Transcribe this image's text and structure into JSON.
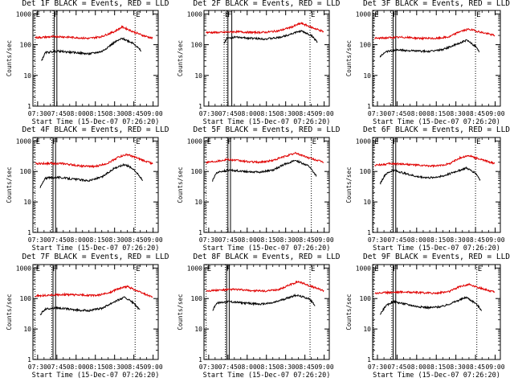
{
  "colors": {
    "events": "#000000",
    "lld": "#e00000",
    "axis": "#000000",
    "background": "#ffffff"
  },
  "chart_data": [
    {
      "type": "line",
      "title": "Det 1F BLACK = Events, RED = LLD",
      "xlabel": "Start Time (15-Dec-07 07:26:20)",
      "ylabel": "Counts/sec",
      "x_ticks": [
        "07:30",
        "07:45",
        "08:00",
        "08:15",
        "08:30",
        "08:45",
        "09:00"
      ],
      "y_ticks": [
        "1",
        "10",
        "100",
        "1000"
      ],
      "x_range": [
        "07:26:20",
        "09:04"
      ],
      "y_range": [
        1,
        1300
      ],
      "y_scale": "log",
      "markers": [
        {
          "label": "E",
          "time": "07:28"
        },
        {
          "label": "F",
          "time": "07:42"
        },
        {
          "label": "E",
          "time": "08:46"
        }
      ],
      "bracket": [
        "07:43",
        "07:45"
      ],
      "series": [
        {
          "color": "red",
          "start": "07:28",
          "end": "09:00",
          "times": [
            "07:28",
            "07:35",
            "07:45",
            "08:00",
            "08:10",
            "08:20",
            "08:30",
            "08:36",
            "08:45",
            "08:52",
            "09:00"
          ],
          "values": [
            170,
            175,
            185,
            170,
            160,
            185,
            270,
            380,
            260,
            200,
            160
          ]
        },
        {
          "color": "black",
          "start": "07:33",
          "end": "08:51",
          "times": [
            "07:33",
            "07:36",
            "07:45",
            "08:00",
            "08:10",
            "08:20",
            "08:30",
            "08:36",
            "08:45",
            "08:51"
          ],
          "values": [
            30,
            55,
            62,
            55,
            50,
            60,
            120,
            160,
            110,
            60
          ]
        }
      ]
    },
    {
      "type": "line",
      "title": "Det 2F BLACK = Events, RED = LLD",
      "xlabel": "Start Time (15-Dec-07 07:26:20)",
      "ylabel": "Counts/sec",
      "x_ticks": [
        "07:30",
        "07:45",
        "08:00",
        "08:15",
        "08:30",
        "08:45",
        "09:00"
      ],
      "y_ticks": [
        "1",
        "10",
        "100",
        "1000"
      ],
      "x_range": [
        "07:26:20",
        "09:04"
      ],
      "y_range": [
        1,
        1300
      ],
      "y_scale": "log",
      "markers": [
        {
          "label": "E",
          "time": "07:42"
        },
        {
          "label": "F",
          "time": "07:44"
        },
        {
          "label": "E",
          "time": "08:49"
        }
      ],
      "bracket": [
        "07:45",
        "07:48"
      ],
      "series": [
        {
          "color": "red",
          "start": "07:28",
          "end": "09:00",
          "times": [
            "07:28",
            "07:40",
            "07:50",
            "08:05",
            "08:15",
            "08:25",
            "08:35",
            "08:42",
            "08:50",
            "09:00"
          ],
          "values": [
            250,
            250,
            265,
            250,
            255,
            285,
            380,
            500,
            370,
            260
          ]
        },
        {
          "color": "black",
          "start": "07:42",
          "end": "08:55",
          "times": [
            "07:42",
            "07:44",
            "07:50",
            "08:05",
            "08:15",
            "08:25",
            "08:35",
            "08:42",
            "08:50",
            "08:55"
          ],
          "values": [
            110,
            160,
            175,
            160,
            155,
            170,
            230,
            280,
            200,
            120
          ]
        }
      ]
    },
    {
      "type": "line",
      "title": "Det 3F BLACK = Events, RED = LLD",
      "xlabel": "Start Time (15-Dec-07 07:26:20)",
      "ylabel": "Counts/sec",
      "x_ticks": [
        "07:30",
        "07:45",
        "08:00",
        "08:15",
        "08:30",
        "08:45",
        "09:00"
      ],
      "y_ticks": [
        "1",
        "10",
        "100",
        "1000"
      ],
      "x_range": [
        "07:26:20",
        "09:04"
      ],
      "y_range": [
        1,
        1300
      ],
      "y_scale": "log",
      "markers": [
        {
          "label": "E",
          "time": "07:27"
        },
        {
          "label": "F",
          "time": "07:41"
        },
        {
          "label": "E",
          "time": "08:45"
        }
      ],
      "bracket": [
        "07:42",
        "07:44"
      ],
      "series": [
        {
          "color": "red",
          "start": "07:28",
          "end": "09:00",
          "times": [
            "07:28",
            "07:40",
            "07:50",
            "08:05",
            "08:15",
            "08:25",
            "08:33",
            "08:40",
            "08:50",
            "09:00"
          ],
          "values": [
            160,
            170,
            175,
            160,
            160,
            180,
            270,
            320,
            250,
            200
          ]
        },
        {
          "color": "black",
          "start": "07:32",
          "end": "08:48",
          "times": [
            "07:32",
            "07:36",
            "07:45",
            "08:00",
            "08:10",
            "08:20",
            "08:30",
            "08:38",
            "08:45",
            "08:48"
          ],
          "values": [
            40,
            60,
            68,
            62,
            60,
            70,
            100,
            140,
            90,
            60
          ]
        }
      ]
    },
    {
      "type": "line",
      "title": "Det 4F BLACK = Events, RED = LLD",
      "xlabel": "Start Time (15-Dec-07 07:26:20)",
      "ylabel": "Counts/sec",
      "x_ticks": [
        "07:30",
        "07:45",
        "08:00",
        "08:15",
        "08:30",
        "08:45",
        "09:00"
      ],
      "y_ticks": [
        "1",
        "10",
        "100",
        "1000"
      ],
      "x_range": [
        "07:26:20",
        "09:04"
      ],
      "y_range": [
        1,
        1300
      ],
      "y_scale": "log",
      "markers": [
        {
          "label": "E",
          "time": "07:28"
        },
        {
          "label": "F",
          "time": "07:41"
        },
        {
          "label": "E",
          "time": "08:46"
        }
      ],
      "bracket": [
        "07:42",
        "07:44"
      ],
      "series": [
        {
          "color": "red",
          "start": "07:28",
          "end": "09:00",
          "times": [
            "07:28",
            "07:40",
            "07:50",
            "08:05",
            "08:15",
            "08:25",
            "08:33",
            "08:40",
            "08:50",
            "09:00"
          ],
          "values": [
            180,
            185,
            180,
            150,
            145,
            190,
            300,
            360,
            250,
            180
          ]
        },
        {
          "color": "black",
          "start": "07:32",
          "end": "08:52",
          "times": [
            "07:32",
            "07:36",
            "07:45",
            "08:00",
            "08:10",
            "08:20",
            "08:30",
            "08:38",
            "08:45",
            "08:52"
          ],
          "values": [
            30,
            60,
            65,
            55,
            50,
            65,
            130,
            170,
            120,
            50
          ]
        }
      ]
    },
    {
      "type": "line",
      "title": "Det 5F BLACK = Events, RED = LLD",
      "xlabel": "Start Time (15-Dec-07 07:26:20)",
      "ylabel": "Counts/sec",
      "x_ticks": [
        "07:30",
        "07:45",
        "08:00",
        "08:15",
        "08:30",
        "08:45",
        "09:00"
      ],
      "y_ticks": [
        "1",
        "10",
        "100",
        "1000"
      ],
      "x_range": [
        "07:26:20",
        "09:04"
      ],
      "y_range": [
        1,
        1300
      ],
      "y_scale": "log",
      "markers": [
        {
          "label": "E",
          "time": "07:28"
        },
        {
          "label": "F",
          "time": "07:44"
        },
        {
          "label": "E",
          "time": "08:50"
        }
      ],
      "bracket": [
        "07:45",
        "07:47"
      ],
      "series": [
        {
          "color": "red",
          "start": "07:28",
          "end": "09:00",
          "times": [
            "07:28",
            "07:40",
            "07:45",
            "08:00",
            "08:10",
            "08:20",
            "08:30",
            "08:38",
            "08:48",
            "09:00"
          ],
          "values": [
            200,
            230,
            250,
            210,
            200,
            230,
            320,
            400,
            280,
            200
          ]
        },
        {
          "color": "black",
          "start": "07:33",
          "end": "08:54",
          "times": [
            "07:33",
            "07:36",
            "07:45",
            "08:00",
            "08:10",
            "08:20",
            "08:30",
            "08:38",
            "08:48",
            "08:54"
          ],
          "values": [
            50,
            90,
            110,
            100,
            95,
            110,
            180,
            230,
            150,
            70
          ]
        }
      ]
    },
    {
      "type": "line",
      "title": "Det 6F BLACK = Events, RED = LLD",
      "xlabel": "Start Time (15-Dec-07 07:26:20)",
      "ylabel": "Counts/sec",
      "x_ticks": [
        "07:30",
        "07:45",
        "08:00",
        "08:15",
        "08:30",
        "08:45",
        "09:00"
      ],
      "y_ticks": [
        "1",
        "10",
        "100",
        "1000"
      ],
      "x_range": [
        "07:26:20",
        "09:04"
      ],
      "y_range": [
        1,
        1300
      ],
      "y_scale": "log",
      "markers": [
        {
          "label": "E",
          "time": "07:27"
        },
        {
          "label": "F",
          "time": "07:41"
        },
        {
          "label": "E",
          "time": "08:45"
        }
      ],
      "bracket": [
        "07:42",
        "07:44"
      ],
      "series": [
        {
          "color": "red",
          "start": "07:28",
          "end": "09:00",
          "times": [
            "07:28",
            "07:40",
            "07:50",
            "08:05",
            "08:15",
            "08:25",
            "08:33",
            "08:40",
            "08:50",
            "09:00"
          ],
          "values": [
            160,
            180,
            175,
            155,
            150,
            180,
            280,
            330,
            240,
            180
          ]
        },
        {
          "color": "black",
          "start": "07:32",
          "end": "08:49",
          "times": [
            "07:32",
            "07:36",
            "07:42",
            "08:00",
            "08:10",
            "08:20",
            "08:30",
            "08:38",
            "08:45",
            "08:49"
          ],
          "values": [
            40,
            80,
            110,
            68,
            62,
            70,
            100,
            130,
            90,
            50
          ]
        }
      ]
    },
    {
      "type": "line",
      "title": "Det 7F BLACK = Events, RED = LLD",
      "xlabel": "Start Time (15-Dec-07 07:26:20)",
      "ylabel": "Counts/sec",
      "x_ticks": [
        "07:30",
        "07:45",
        "08:00",
        "08:15",
        "08:30",
        "08:45",
        "09:00"
      ],
      "y_ticks": [
        "1",
        "10",
        "100",
        "1000"
      ],
      "x_range": [
        "07:26:20",
        "09:04"
      ],
      "y_range": [
        1,
        1300
      ],
      "y_scale": "log",
      "markers": [
        {
          "label": "E",
          "time": "07:28"
        },
        {
          "label": "F",
          "time": "07:41"
        },
        {
          "label": "E",
          "time": "08:46"
        }
      ],
      "bracket": [
        "07:42",
        "07:44"
      ],
      "series": [
        {
          "color": "red",
          "start": "07:28",
          "end": "09:00",
          "times": [
            "07:28",
            "07:40",
            "07:50",
            "08:05",
            "08:15",
            "08:25",
            "08:33",
            "08:40",
            "08:50",
            "09:00"
          ],
          "values": [
            120,
            130,
            135,
            130,
            125,
            150,
            210,
            250,
            160,
            110
          ]
        },
        {
          "color": "black",
          "start": "07:32",
          "end": "08:50",
          "times": [
            "07:32",
            "07:36",
            "07:45",
            "08:00",
            "08:10",
            "08:20",
            "08:30",
            "08:38",
            "08:45",
            "08:50"
          ],
          "values": [
            30,
            45,
            50,
            42,
            40,
            48,
            80,
            110,
            70,
            40
          ]
        }
      ]
    },
    {
      "type": "line",
      "title": "Det 8F BLACK = Events, RED = LLD",
      "xlabel": "Start Time (15-Dec-07 07:26:20)",
      "ylabel": "Counts/sec",
      "x_ticks": [
        "07:30",
        "07:45",
        "08:00",
        "08:15",
        "08:30",
        "08:45",
        "09:00"
      ],
      "y_ticks": [
        "1",
        "10",
        "100",
        "1000"
      ],
      "x_range": [
        "07:26:20",
        "09:04"
      ],
      "y_range": [
        1,
        1300
      ],
      "y_scale": "log",
      "markers": [
        {
          "label": "E",
          "time": "07:28"
        },
        {
          "label": "F",
          "time": "07:43"
        },
        {
          "label": "E",
          "time": "08:49"
        }
      ],
      "bracket": [
        "07:44",
        "07:46"
      ],
      "series": [
        {
          "color": "red",
          "start": "07:28",
          "end": "09:00",
          "times": [
            "07:28",
            "07:40",
            "07:50",
            "08:05",
            "08:15",
            "08:25",
            "08:33",
            "08:40",
            "08:50",
            "09:00"
          ],
          "values": [
            180,
            190,
            200,
            180,
            175,
            200,
            280,
            360,
            250,
            180
          ]
        },
        {
          "color": "black",
          "start": "07:33",
          "end": "08:53",
          "times": [
            "07:33",
            "07:36",
            "07:45",
            "08:00",
            "08:10",
            "08:20",
            "08:30",
            "08:38",
            "08:48",
            "08:53"
          ],
          "values": [
            40,
            70,
            80,
            70,
            65,
            72,
            100,
            130,
            100,
            60
          ]
        }
      ]
    },
    {
      "type": "line",
      "title": "Det 9F BLACK = Events, RED = LLD",
      "xlabel": "Start Time (15-Dec-07 07:26:20)",
      "ylabel": "Counts/sec",
      "x_ticks": [
        "07:30",
        "07:45",
        "08:00",
        "08:15",
        "08:30",
        "08:45",
        "09:00"
      ],
      "y_ticks": [
        "1",
        "10",
        "100",
        "1000"
      ],
      "x_range": [
        "07:26:20",
        "09:04"
      ],
      "y_range": [
        1,
        1300
      ],
      "y_scale": "log",
      "markers": [
        {
          "label": "E",
          "time": "07:27"
        },
        {
          "label": "F",
          "time": "07:41"
        },
        {
          "label": "E",
          "time": "08:46"
        }
      ],
      "bracket": [
        "07:42",
        "07:44"
      ],
      "series": [
        {
          "color": "red",
          "start": "07:28",
          "end": "09:00",
          "times": [
            "07:28",
            "07:40",
            "07:50",
            "08:05",
            "08:15",
            "08:25",
            "08:33",
            "08:40",
            "08:50",
            "09:00"
          ],
          "values": [
            150,
            160,
            165,
            155,
            150,
            170,
            250,
            290,
            210,
            160
          ]
        },
        {
          "color": "black",
          "start": "07:32",
          "end": "08:50",
          "times": [
            "07:32",
            "07:36",
            "07:42",
            "08:00",
            "08:10",
            "08:20",
            "08:30",
            "08:38",
            "08:45",
            "08:50"
          ],
          "values": [
            30,
            55,
            80,
            55,
            50,
            55,
            80,
            110,
            70,
            40
          ]
        }
      ]
    }
  ]
}
